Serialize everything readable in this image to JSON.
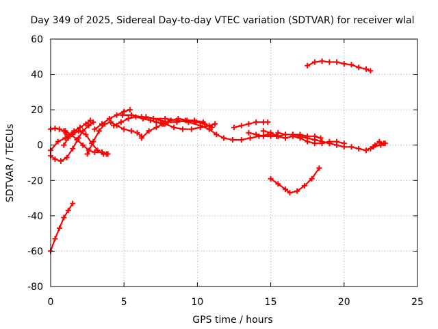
{
  "chart_data": {
    "type": "scatter",
    "title": "Day 349 of 2025, Sidereal Day-to-day VTEC variation (SDTVAR) for receiver wlal",
    "xlabel": "GPS time / hours",
    "ylabel": "SDTVAR / TECUs",
    "xlim": [
      0,
      25
    ],
    "ylim": [
      -80,
      60
    ],
    "x_ticks": [
      0,
      5,
      10,
      15,
      20,
      25
    ],
    "y_ticks": [
      -80,
      -60,
      -40,
      -20,
      0,
      20,
      40,
      60
    ],
    "grid": true,
    "marker": "plus",
    "color": "#ff0000",
    "series": [
      {
        "x": [
          0.0,
          0.3,
          0.6,
          0.9,
          1.2,
          1.5
        ],
        "y": [
          -60,
          -53,
          -47,
          -41,
          -37,
          -33
        ]
      },
      {
        "x": [
          0.0,
          0.3,
          0.6,
          0.9,
          1.1
        ],
        "y": [
          9,
          9.5,
          9,
          8,
          6
        ]
      },
      {
        "x": [
          0.0,
          0.3,
          0.7,
          1.1,
          1.5,
          1.9,
          2.2,
          2.6,
          2.9
        ],
        "y": [
          -6,
          -8,
          -9,
          -7,
          -2,
          4,
          8,
          11,
          13
        ]
      },
      {
        "x": [
          0.0,
          0.5,
          1.0,
          1.5,
          1.9,
          2.4,
          2.8,
          3.2,
          3.6,
          3.8
        ],
        "y": [
          -3,
          2,
          4,
          6,
          8,
          6,
          1,
          -3,
          -5,
          -5
        ]
      },
      {
        "x": [
          0.9,
          1.2,
          1.6,
          2.0,
          2.4,
          2.7
        ],
        "y": [
          0,
          4,
          8,
          10,
          12,
          14
        ]
      },
      {
        "x": [
          1.0,
          1.4,
          1.8,
          2.2,
          2.6,
          3.0,
          3.5,
          3.9
        ],
        "y": [
          8,
          6,
          3,
          0,
          -3,
          -4,
          -4,
          -5
        ]
      },
      {
        "x": [
          2.5,
          2.9,
          3.3,
          3.7,
          4.1,
          4.5,
          5.0,
          5.5,
          5.9,
          6.2
        ],
        "y": [
          -5,
          2,
          8,
          12,
          13,
          11,
          9,
          8,
          7,
          5
        ]
      },
      {
        "x": [
          3.0,
          3.5,
          4.0,
          4.5,
          5.0,
          5.4
        ],
        "y": [
          9,
          12,
          15,
          17,
          19,
          20
        ]
      },
      {
        "x": [
          4.3,
          4.8,
          5.3,
          5.8,
          6.3,
          6.8,
          7.2,
          7.6
        ],
        "y": [
          11,
          13,
          15,
          16,
          15,
          14,
          13,
          12
        ]
      },
      {
        "x": [
          4.9,
          5.5,
          6.2,
          7.0,
          7.8,
          8.6,
          9.4,
          10.2,
          10.8,
          11.3,
          11.8,
          12.4,
          13.0,
          13.6,
          14.2,
          14.8,
          15.4,
          16.0
        ],
        "y": [
          17,
          17,
          16,
          15,
          15,
          14,
          13,
          11,
          9,
          6,
          4,
          3,
          3,
          4,
          5,
          6,
          5,
          4
        ]
      },
      {
        "x": [
          6.2,
          6.7,
          7.2,
          7.7,
          8.2,
          8.7,
          9.3,
          9.9,
          10.5,
          11.0
        ],
        "y": [
          4,
          8,
          10,
          12,
          14,
          15,
          14,
          13,
          12,
          10
        ]
      },
      {
        "x": [
          6.5,
          7.0,
          7.5,
          8.0,
          8.6,
          9.2,
          9.8,
          10.4
        ],
        "y": [
          16,
          15,
          14,
          13,
          13,
          14,
          14,
          13
        ]
      },
      {
        "x": [
          7.2,
          7.8,
          8.4,
          9.0,
          9.6,
          10.2,
          10.8,
          11.2
        ],
        "y": [
          13,
          12,
          10,
          9,
          9,
          10,
          11,
          12
        ]
      },
      {
        "x": [
          12.5,
          13.0,
          13.5,
          14.0,
          14.5,
          14.8
        ],
        "y": [
          10,
          11,
          12,
          13,
          13,
          13
        ]
      },
      {
        "x": [
          13.5,
          14.0,
          14.5,
          15.0,
          15.5,
          16.0,
          16.5,
          17.0,
          17.5,
          18.0,
          18.4
        ],
        "y": [
          7,
          6,
          5,
          5,
          5,
          6,
          6,
          6,
          5,
          5,
          4
        ]
      },
      {
        "x": [
          14.5,
          15.0,
          15.5,
          16.0,
          16.5,
          17.0,
          17.5,
          18.0,
          18.5,
          19.0,
          19.5,
          20.0
        ],
        "y": [
          8,
          7,
          5,
          4,
          5,
          4,
          2,
          1,
          1,
          2,
          2,
          1
        ]
      },
      {
        "x": [
          15.5,
          16.0,
          16.5,
          17.0,
          17.5,
          18.0,
          18.5,
          19.0
        ],
        "y": [
          7,
          6,
          6,
          5,
          4,
          3,
          2,
          1
        ]
      },
      {
        "x": [
          15.0,
          15.5,
          16.0,
          16.3,
          16.8,
          17.3,
          17.8,
          18.3
        ],
        "y": [
          -19,
          -22,
          -25,
          -27,
          -26,
          -23,
          -19,
          -13
        ]
      },
      {
        "x": [
          17.5,
          18.0,
          18.5,
          19.0,
          19.5,
          20.0,
          20.5,
          21.0,
          21.5,
          21.8
        ],
        "y": [
          45,
          47,
          47.5,
          47,
          47,
          46,
          45.5,
          44,
          43,
          42
        ]
      },
      {
        "x": [
          19.0,
          19.5,
          20.0,
          20.5,
          21.0,
          21.5,
          22.0,
          22.5,
          22.8
        ],
        "y": [
          1,
          0,
          -1,
          -1,
          -2,
          -3,
          -1,
          0,
          1
        ]
      },
      {
        "x": [
          21.8,
          22.1,
          22.4,
          22.7
        ],
        "y": [
          -2,
          0,
          2,
          1
        ]
      }
    ]
  }
}
